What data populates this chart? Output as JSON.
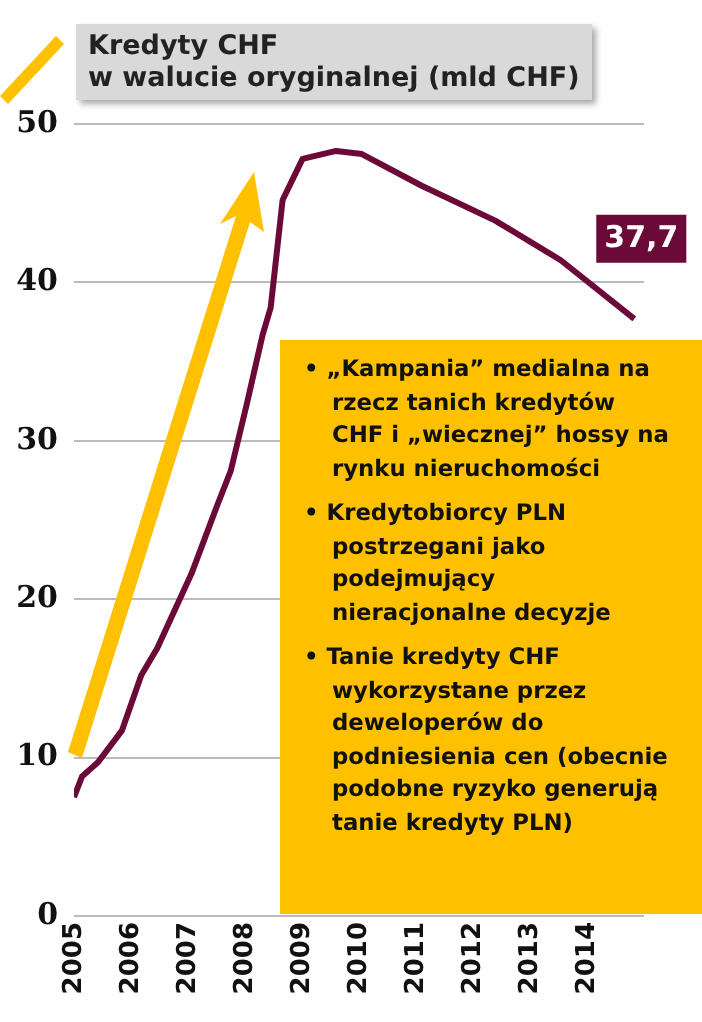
{
  "chart_data": {
    "type": "line",
    "title": "Kredyty CHF\nw walucie oryginalnej (mld CHF)",
    "x": [
      2005.0,
      2005.14,
      2005.42,
      2005.84,
      2006.18,
      2006.46,
      2007.06,
      2007.51,
      2007.75,
      2008.03,
      2008.31,
      2008.45,
      2008.66,
      2009.01,
      2009.6,
      2010.05,
      2011.1,
      2012.39,
      2013.54,
      2014.83
    ],
    "series": [
      {
        "color": "#6b0a38",
        "values": [
          7.5,
          8.8,
          9.7,
          11.7,
          15.2,
          16.9,
          21.6,
          25.9,
          28.1,
          32.3,
          36.7,
          38.4,
          45.2,
          47.8,
          48.3,
          48.1,
          46.1,
          43.9,
          41.4,
          37.7
        ],
        "value_labels": [
          null,
          null,
          null,
          null,
          null,
          null,
          null,
          null,
          null,
          null,
          null,
          null,
          null,
          null,
          null,
          null,
          null,
          null,
          null,
          "37,7"
        ]
      }
    ],
    "xlim": [
      2005,
      2015
    ],
    "xticks": [
      2005,
      2006,
      2007,
      2008,
      2009,
      2010,
      2011,
      2012,
      2013,
      2014
    ],
    "ylim": [
      0,
      50
    ],
    "yticks": [
      0,
      10,
      20,
      30,
      40,
      50
    ],
    "grid": "y",
    "legend": false,
    "marker": "none",
    "line_style": "solid",
    "annotations": [
      "• „Kampania” medialna na rzecz tanich kredytów CHF i „wiecznej” hossy na rynku nieruchomości",
      "• Kredytobiorcy PLN postrzegani jako podejmujący nieracjonalne decyzje",
      "• Tanie kredyty CHF wykorzystane przez deweloperów do podniesienia cen (obecnie podobne ryzyko generują tanie kredyty PLN)"
    ]
  }
}
